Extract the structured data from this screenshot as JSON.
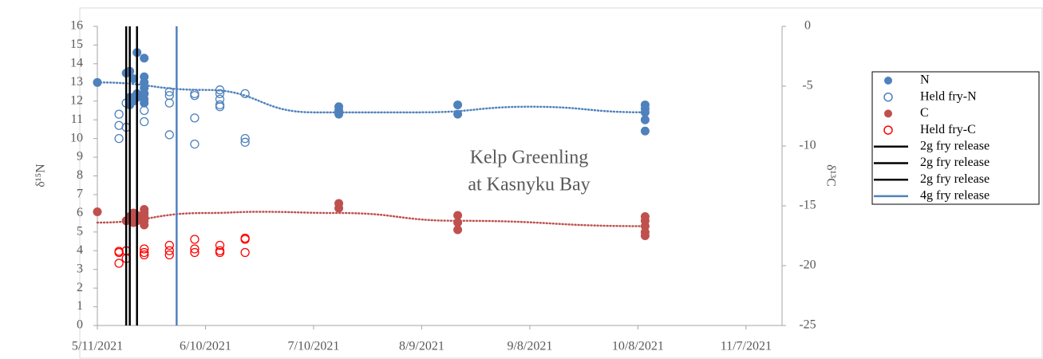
{
  "chart_data": {
    "type": "scatter",
    "y_label": "δ¹⁵N",
    "y2_label": "δ¹³C",
    "annotation": [
      "Kelp Greenling",
      "at Kasnyku Bay"
    ],
    "xlim": [
      "2021-05-11",
      "2021-11-17"
    ],
    "xticks": [
      {
        "value": "2021-05-11",
        "label": "5/11/2021"
      },
      {
        "value": "2021-06-10",
        "label": "6/10/2021"
      },
      {
        "value": "2021-07-10",
        "label": "7/10/2021"
      },
      {
        "value": "2021-08-09",
        "label": "8/9/2021"
      },
      {
        "value": "2021-09-08",
        "label": "9/8/2021"
      },
      {
        "value": "2021-10-08",
        "label": "10/8/2021"
      },
      {
        "value": "2021-11-07",
        "label": "11/7/2021"
      }
    ],
    "ylim": [
      0,
      16
    ],
    "yticks": [
      0,
      1,
      2,
      3,
      4,
      5,
      6,
      7,
      8,
      9,
      10,
      11,
      12,
      13,
      14,
      15,
      16
    ],
    "y2lim": [
      -25,
      0
    ],
    "y2ticks": [
      -25,
      -20,
      -15,
      -10,
      -5,
      0
    ],
    "legend": "right",
    "series": [
      {
        "name": "N",
        "color": "#4f81bd",
        "marker": "filled",
        "axis": "y",
        "x": [
          "2021-05-11",
          "2021-05-19",
          "2021-05-20",
          "2021-05-20",
          "2021-05-20",
          "2021-05-21",
          "2021-05-21",
          "2021-05-21",
          "2021-05-22",
          "2021-05-22",
          "2021-05-22",
          "2021-05-24",
          "2021-05-24",
          "2021-05-24",
          "2021-05-24",
          "2021-05-24",
          "2021-05-24",
          "2021-05-24",
          "2021-07-17",
          "2021-07-17",
          "2021-07-17",
          "2021-08-19",
          "2021-08-19",
          "2021-10-10",
          "2021-10-10",
          "2021-10-10",
          "2021-10-10",
          "2021-10-10"
        ],
        "values": [
          13.0,
          13.5,
          12.2,
          11.8,
          13.6,
          13.2,
          12.2,
          12.0,
          14.6,
          12.4,
          12.2,
          14.3,
          13.3,
          13.0,
          12.7,
          12.4,
          12.1,
          11.9,
          11.7,
          11.5,
          11.3,
          11.8,
          11.3,
          11.8,
          11.6,
          11.4,
          11.0,
          10.4
        ]
      },
      {
        "name": "Held fry-N",
        "color": "#4f81bd",
        "marker": "open",
        "axis": "y",
        "x": [
          "2021-05-17",
          "2021-05-17",
          "2021-05-17",
          "2021-05-19",
          "2021-05-19",
          "2021-05-24",
          "2021-05-24",
          "2021-05-24",
          "2021-05-31",
          "2021-05-31",
          "2021-05-31",
          "2021-05-31",
          "2021-06-07",
          "2021-06-07",
          "2021-06-07",
          "2021-06-07",
          "2021-06-14",
          "2021-06-14",
          "2021-06-14",
          "2021-06-14",
          "2021-06-14",
          "2021-06-21",
          "2021-06-21",
          "2021-06-21"
        ],
        "values": [
          11.3,
          10.7,
          10.0,
          10.6,
          11.9,
          11.5,
          10.9,
          12.4,
          12.5,
          12.3,
          11.9,
          10.2,
          12.4,
          12.3,
          11.1,
          9.7,
          12.6,
          12.4,
          12.1,
          11.8,
          11.7,
          12.4,
          10.0,
          9.8
        ]
      },
      {
        "name": "C",
        "color": "#c0504d",
        "marker": "filled",
        "axis": "y2",
        "x": [
          "2021-05-11",
          "2021-05-19",
          "2021-05-20",
          "2021-05-21",
          "2021-05-21",
          "2021-05-21",
          "2021-05-22",
          "2021-05-22",
          "2021-05-24",
          "2021-05-24",
          "2021-05-24",
          "2021-05-24",
          "2021-05-24",
          "2021-07-17",
          "2021-07-17",
          "2021-08-19",
          "2021-08-19",
          "2021-08-19",
          "2021-10-10",
          "2021-10-10",
          "2021-10-10",
          "2021-10-10",
          "2021-10-10"
        ],
        "values": [
          -15.5,
          -16.25,
          -15.9,
          -15.6,
          -16.1,
          -16.4,
          -15.8,
          -16.25,
          -15.3,
          -15.6,
          -15.9,
          -16.25,
          -16.6,
          -14.8,
          -15.2,
          -15.8,
          -16.4,
          -17.0,
          -15.9,
          -16.25,
          -16.7,
          -17.2,
          -17.5
        ]
      },
      {
        "name": "Held fry-C",
        "color": "#ff0000",
        "marker": "open",
        "axis": "y2",
        "x": [
          "2021-05-17",
          "2021-05-17",
          "2021-05-17",
          "2021-05-19",
          "2021-05-19",
          "2021-05-24",
          "2021-05-24",
          "2021-05-24",
          "2021-05-31",
          "2021-05-31",
          "2021-05-31",
          "2021-06-07",
          "2021-06-07",
          "2021-06-07",
          "2021-06-14",
          "2021-06-14",
          "2021-06-14",
          "2021-06-21",
          "2021-06-21",
          "2021-06-21"
        ],
        "values": [
          -18.9,
          -19.8,
          -18.8,
          -18.75,
          -19.4,
          -18.6,
          -18.9,
          -19.1,
          -18.3,
          -18.75,
          -19.1,
          -17.8,
          -18.6,
          -18.9,
          -18.3,
          -18.75,
          -18.9,
          -17.7,
          -17.8,
          -18.9
        ]
      },
      {
        "name": "2g fry release",
        "color": "#000000",
        "marker": "vline",
        "x": "2021-05-19"
      },
      {
        "name": "2g fry release",
        "color": "#000000",
        "marker": "vline",
        "x": "2021-05-20"
      },
      {
        "name": "2g fry release",
        "color": "#000000",
        "marker": "vline",
        "x": "2021-05-22"
      },
      {
        "name": "4g fry release",
        "color": "#4f81bd",
        "marker": "vline",
        "x": "2021-06-02"
      }
    ],
    "trendlines": [
      {
        "color": "#4f81bd",
        "axis": "y",
        "x": [
          "2021-05-11",
          "2021-06-10",
          "2021-07-10",
          "2021-08-09",
          "2021-09-08",
          "2021-10-10"
        ],
        "values": [
          13.0,
          12.6,
          11.4,
          11.4,
          11.7,
          11.4
        ]
      },
      {
        "color": "#c0504d",
        "axis": "y2",
        "x": [
          "2021-05-11",
          "2021-06-10",
          "2021-06-25",
          "2021-07-17",
          "2021-08-19",
          "2021-10-10"
        ],
        "values": [
          -16.4,
          -15.6,
          -15.5,
          -15.6,
          -16.25,
          -16.7
        ]
      }
    ]
  }
}
